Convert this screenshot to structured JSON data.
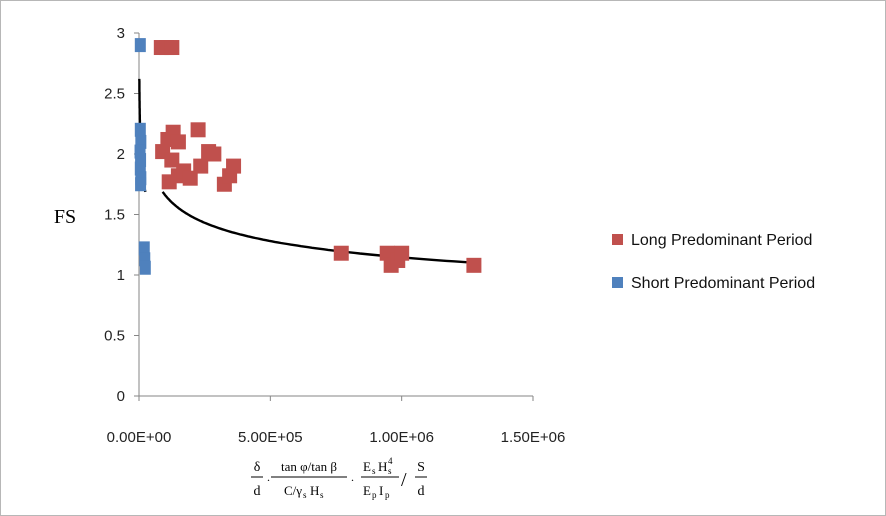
{
  "chart_data": {
    "type": "scatter",
    "ylabel": "FS",
    "xlabel_parts": {
      "delta": "δ",
      "d": "d",
      "tan_num": "tan φ/tan β",
      "tan_den": "C/γ",
      "es_num": "E",
      "ep_den": "E",
      "s": "S",
      "d2": "d"
    },
    "xlim": [
      0,
      1500000
    ],
    "ylim": [
      0,
      3
    ],
    "x_ticks": [
      {
        "v": 0,
        "label": "0.00E+00"
      },
      {
        "v": 500000,
        "label": "5.00E+05"
      },
      {
        "v": 1000000,
        "label": "1.00E+06"
      },
      {
        "v": 1500000,
        "label": "1.50E+06"
      }
    ],
    "y_ticks": [
      {
        "v": 0,
        "label": "0"
      },
      {
        "v": 0.5,
        "label": "0.5"
      },
      {
        "v": 1,
        "label": "1"
      },
      {
        "v": 1.5,
        "label": "1.5"
      },
      {
        "v": 2,
        "label": "2"
      },
      {
        "v": 2.5,
        "label": "2.5"
      },
      {
        "v": 3,
        "label": "3"
      }
    ],
    "legend_position": "right",
    "series": [
      {
        "name": "Long Predominant Period",
        "color": "#c0504d",
        "points": [
          [
            85000,
            2.88
          ],
          [
            105000,
            2.88
          ],
          [
            125000,
            2.88
          ],
          [
            90000,
            2.02
          ],
          [
            110000,
            2.12
          ],
          [
            130000,
            2.18
          ],
          [
            150000,
            2.1
          ],
          [
            125000,
            1.95
          ],
          [
            115000,
            1.77
          ],
          [
            150000,
            1.82
          ],
          [
            170000,
            1.86
          ],
          [
            195000,
            1.8
          ],
          [
            225000,
            2.2
          ],
          [
            235000,
            1.9
          ],
          [
            265000,
            2.02
          ],
          [
            285000,
            2.0
          ],
          [
            325000,
            1.75
          ],
          [
            345000,
            1.82
          ],
          [
            360000,
            1.9
          ],
          [
            770000,
            1.18
          ],
          [
            945000,
            1.18
          ],
          [
            960000,
            1.08
          ],
          [
            985000,
            1.12
          ],
          [
            1000000,
            1.18
          ],
          [
            1275000,
            1.08
          ]
        ]
      },
      {
        "name": "Short Predominant Period",
        "color": "#4f81bd",
        "points": [
          [
            5000,
            2.9
          ],
          [
            5000,
            2.2
          ],
          [
            7000,
            2.1
          ],
          [
            4000,
            2.02
          ],
          [
            6000,
            1.95
          ],
          [
            5000,
            1.88
          ],
          [
            7000,
            1.8
          ],
          [
            6000,
            1.75
          ],
          [
            20000,
            1.22
          ],
          [
            22000,
            1.13
          ],
          [
            24000,
            1.06
          ]
        ]
      }
    ],
    "trendlines": [
      {
        "series": "Long Predominant Period",
        "x_start": 90000,
        "x_end": 1280000,
        "a": 10.55,
        "b": -0.1607
      },
      {
        "series": "Short Predominant Period",
        "x_start": 1300,
        "x_end": 24000,
        "a": 7.75,
        "b": -0.1512
      }
    ]
  }
}
